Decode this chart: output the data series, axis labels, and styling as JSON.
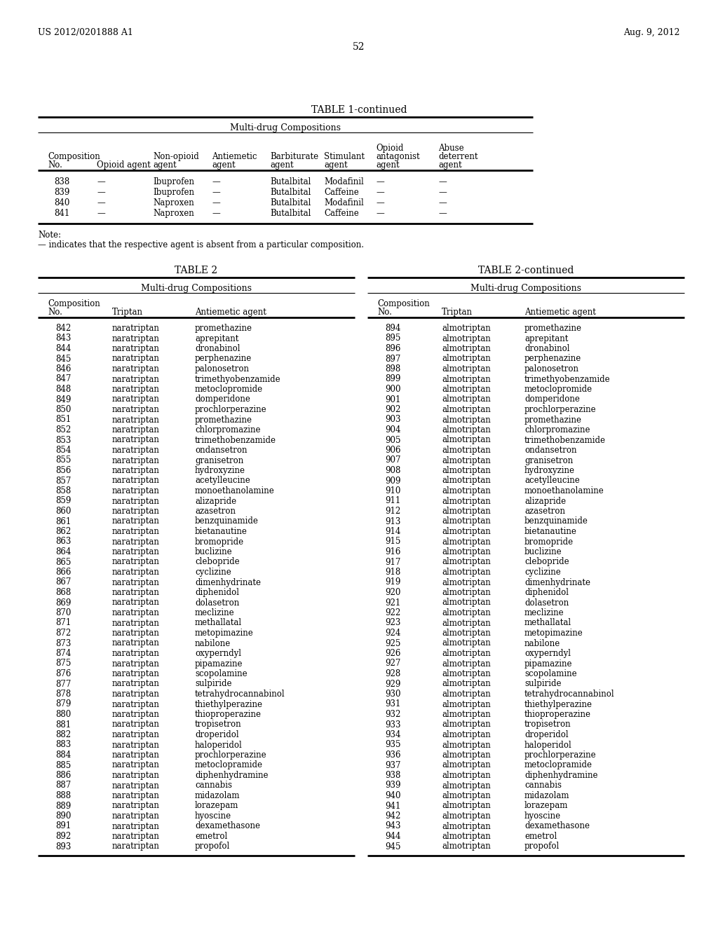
{
  "header_left": "US 2012/0201888 A1",
  "header_right": "Aug. 9, 2012",
  "page_number": "52",
  "table1_title": "TABLE 1-continued",
  "table1_subtitle": "Multi-drug Compositions",
  "note_line1": "Note:",
  "note_line2": "— indicates that the respective agent is absent from a particular composition.",
  "table1_data": [
    [
      "838",
      "—",
      "Ibuprofen",
      "—",
      "Butalbital",
      "Modafinil",
      "—",
      "—"
    ],
    [
      "839",
      "—",
      "Ibuprofen",
      "—",
      "Butalbital",
      "Caffeine",
      "—",
      "—"
    ],
    [
      "840",
      "—",
      "Naproxen",
      "—",
      "Butalbital",
      "Modafinil",
      "—",
      "—"
    ],
    [
      "841",
      "—",
      "Naproxen",
      "—",
      "Butalbital",
      "Caffeine",
      "—",
      "—"
    ]
  ],
  "table2_title": "TABLE 2",
  "table2_subtitle": "Multi-drug Compositions",
  "table2cont_title": "TABLE 2-continued",
  "table2cont_subtitle": "Multi-drug Compositions",
  "table2_data": [
    [
      "842",
      "naratriptan",
      "promethazine"
    ],
    [
      "843",
      "naratriptan",
      "aprepitant"
    ],
    [
      "844",
      "naratriptan",
      "dronabinol"
    ],
    [
      "845",
      "naratriptan",
      "perphenazine"
    ],
    [
      "846",
      "naratriptan",
      "palonosetron"
    ],
    [
      "847",
      "naratriptan",
      "trimethyobenzamide"
    ],
    [
      "848",
      "naratriptan",
      "metoclopromide"
    ],
    [
      "849",
      "naratriptan",
      "domperidone"
    ],
    [
      "850",
      "naratriptan",
      "prochlorperazine"
    ],
    [
      "851",
      "naratriptan",
      "promethazine"
    ],
    [
      "852",
      "naratriptan",
      "chlorpromazine"
    ],
    [
      "853",
      "naratriptan",
      "trimethobenzamide"
    ],
    [
      "854",
      "naratriptan",
      "ondansetron"
    ],
    [
      "855",
      "naratriptan",
      "granisetron"
    ],
    [
      "856",
      "naratriptan",
      "hydroxyzine"
    ],
    [
      "857",
      "naratriptan",
      "acetylleucine"
    ],
    [
      "858",
      "naratriptan",
      "monoethanolamine"
    ],
    [
      "859",
      "naratriptan",
      "alizapride"
    ],
    [
      "860",
      "naratriptan",
      "azasetron"
    ],
    [
      "861",
      "naratriptan",
      "benzquinamide"
    ],
    [
      "862",
      "naratriptan",
      "bietanautine"
    ],
    [
      "863",
      "naratriptan",
      "bromopride"
    ],
    [
      "864",
      "naratriptan",
      "buclizine"
    ],
    [
      "865",
      "naratriptan",
      "clebopride"
    ],
    [
      "866",
      "naratriptan",
      "cyclizine"
    ],
    [
      "867",
      "naratriptan",
      "dimenhydrinate"
    ],
    [
      "868",
      "naratriptan",
      "diphenidol"
    ],
    [
      "869",
      "naratriptan",
      "dolasetron"
    ],
    [
      "870",
      "naratriptan",
      "meclizine"
    ],
    [
      "871",
      "naratriptan",
      "methallatal"
    ],
    [
      "872",
      "naratriptan",
      "metopimazine"
    ],
    [
      "873",
      "naratriptan",
      "nabilone"
    ],
    [
      "874",
      "naratriptan",
      "oxyperndyl"
    ],
    [
      "875",
      "naratriptan",
      "pipamazine"
    ],
    [
      "876",
      "naratriptan",
      "scopolamine"
    ],
    [
      "877",
      "naratriptan",
      "sulpiride"
    ],
    [
      "878",
      "naratriptan",
      "tetrahydrocannabinol"
    ],
    [
      "879",
      "naratriptan",
      "thiethylperazine"
    ],
    [
      "880",
      "naratriptan",
      "thioproperazine"
    ],
    [
      "881",
      "naratriptan",
      "tropisetron"
    ],
    [
      "882",
      "naratriptan",
      "droperidol"
    ],
    [
      "883",
      "naratriptan",
      "haloperidol"
    ],
    [
      "884",
      "naratriptan",
      "prochlorperazine"
    ],
    [
      "885",
      "naratriptan",
      "metoclopramide"
    ],
    [
      "886",
      "naratriptan",
      "diphenhydramine"
    ],
    [
      "887",
      "naratriptan",
      "cannabis"
    ],
    [
      "888",
      "naratriptan",
      "midazolam"
    ],
    [
      "889",
      "naratriptan",
      "lorazepam"
    ],
    [
      "890",
      "naratriptan",
      "hyoscine"
    ],
    [
      "891",
      "naratriptan",
      "dexamethasone"
    ],
    [
      "892",
      "naratriptan",
      "emetrol"
    ],
    [
      "893",
      "naratriptan",
      "propofol"
    ]
  ],
  "table2cont_data": [
    [
      "894",
      "almotriptan",
      "promethazine"
    ],
    [
      "895",
      "almotriptan",
      "aprepitant"
    ],
    [
      "896",
      "almotriptan",
      "dronabinol"
    ],
    [
      "897",
      "almotriptan",
      "perphenazine"
    ],
    [
      "898",
      "almotriptan",
      "palonosetron"
    ],
    [
      "899",
      "almotriptan",
      "trimethyobenzamide"
    ],
    [
      "900",
      "almotriptan",
      "metoclopromide"
    ],
    [
      "901",
      "almotriptan",
      "domperidone"
    ],
    [
      "902",
      "almotriptan",
      "prochlorperazine"
    ],
    [
      "903",
      "almotriptan",
      "promethazine"
    ],
    [
      "904",
      "almotriptan",
      "chlorpromazine"
    ],
    [
      "905",
      "almotriptan",
      "trimethobenzamide"
    ],
    [
      "906",
      "almotriptan",
      "ondansetron"
    ],
    [
      "907",
      "almotriptan",
      "granisetron"
    ],
    [
      "908",
      "almotriptan",
      "hydroxyzine"
    ],
    [
      "909",
      "almotriptan",
      "acetylleucine"
    ],
    [
      "910",
      "almotriptan",
      "monoethanolamine"
    ],
    [
      "911",
      "almotriptan",
      "alizapride"
    ],
    [
      "912",
      "almotriptan",
      "azasetron"
    ],
    [
      "913",
      "almotriptan",
      "benzquinamide"
    ],
    [
      "914",
      "almotriptan",
      "bietanautine"
    ],
    [
      "915",
      "almotriptan",
      "bromopride"
    ],
    [
      "916",
      "almotriptan",
      "buclizine"
    ],
    [
      "917",
      "almotriptan",
      "clebopride"
    ],
    [
      "918",
      "almotriptan",
      "cyclizine"
    ],
    [
      "919",
      "almotriptan",
      "dimenhydrinate"
    ],
    [
      "920",
      "almotriptan",
      "diphenidol"
    ],
    [
      "921",
      "almotriptan",
      "dolasetron"
    ],
    [
      "922",
      "almotriptan",
      "meclizine"
    ],
    [
      "923",
      "almotriptan",
      "methallatal"
    ],
    [
      "924",
      "almotriptan",
      "metopimazine"
    ],
    [
      "925",
      "almotriptan",
      "nabilone"
    ],
    [
      "926",
      "almotriptan",
      "oxyperndyl"
    ],
    [
      "927",
      "almotriptan",
      "pipamazine"
    ],
    [
      "928",
      "almotriptan",
      "scopolamine"
    ],
    [
      "929",
      "almotriptan",
      "sulpiride"
    ],
    [
      "930",
      "almotriptan",
      "tetrahydrocannabinol"
    ],
    [
      "931",
      "almotriptan",
      "thiethylperazine"
    ],
    [
      "932",
      "almotriptan",
      "thioproperazine"
    ],
    [
      "933",
      "almotriptan",
      "tropisetron"
    ],
    [
      "934",
      "almotriptan",
      "droperidol"
    ],
    [
      "935",
      "almotriptan",
      "haloperidol"
    ],
    [
      "936",
      "almotriptan",
      "prochlorperazine"
    ],
    [
      "937",
      "almotriptan",
      "metoclopramide"
    ],
    [
      "938",
      "almotriptan",
      "diphenhydramine"
    ],
    [
      "939",
      "almotriptan",
      "cannabis"
    ],
    [
      "940",
      "almotriptan",
      "midazolam"
    ],
    [
      "941",
      "almotriptan",
      "lorazepam"
    ],
    [
      "942",
      "almotriptan",
      "hyoscine"
    ],
    [
      "943",
      "almotriptan",
      "dexamethasone"
    ],
    [
      "944",
      "almotriptan",
      "emetrol"
    ],
    [
      "945",
      "almotriptan",
      "propofol"
    ]
  ],
  "bg_color": "#ffffff",
  "text_color": "#000000"
}
